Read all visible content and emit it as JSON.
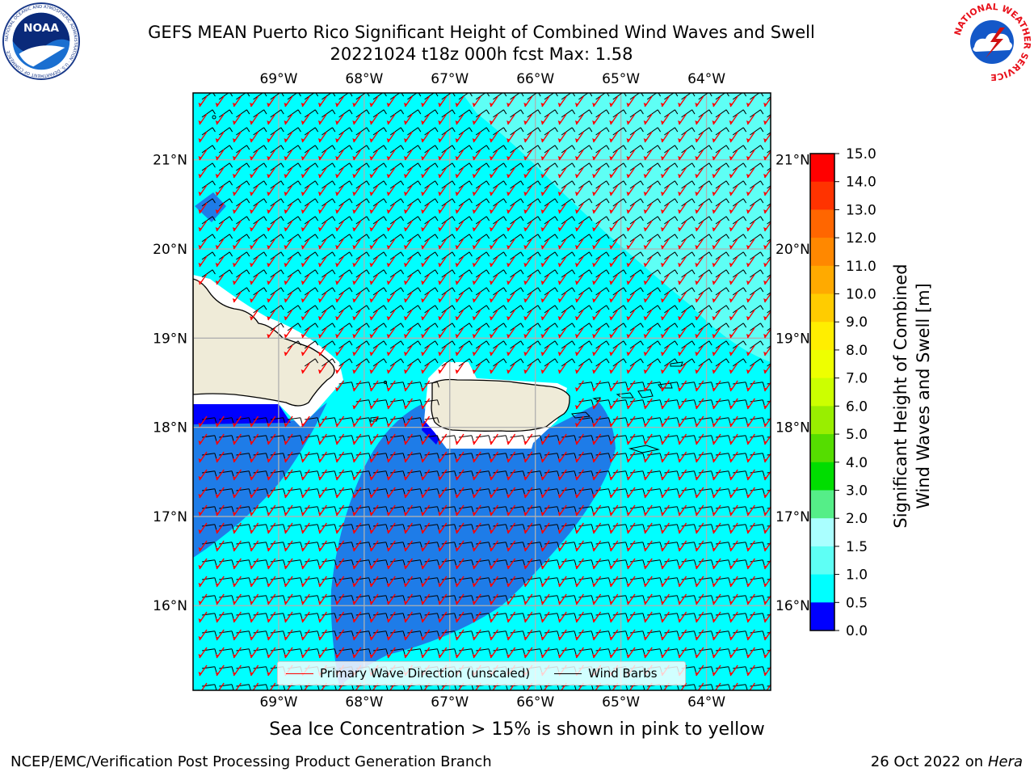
{
  "header": {
    "title_line1": "GEFS MEAN Puerto Rico Significant Height of Combined Wind Waves and Swell",
    "title_line2": "20221024 t18z 000h fcst   Max: 1.58"
  },
  "logos": {
    "left": {
      "icon": "noaa-logo-icon",
      "text": "NOAA",
      "ring_text": "NATIONAL OCEANIC AND ATMOSPHERIC ADMINISTRATION · U.S. DEPARTMENT OF COMMERCE"
    },
    "right": {
      "icon": "nws-logo-icon",
      "ring_text": "NATIONAL WEATHER SERVICE"
    }
  },
  "map": {
    "lon_ticks": [
      "69°W",
      "68°W",
      "67°W",
      "66°W",
      "65°W",
      "64°W"
    ],
    "lat_ticks": [
      "21°N",
      "20°N",
      "19°N",
      "18°N",
      "17°N",
      "16°N"
    ],
    "lon_values": [
      -69,
      -68,
      -67,
      -66,
      -65,
      -64
    ],
    "lat_values": [
      21,
      20,
      19,
      18,
      17,
      16
    ],
    "lon_range": [
      -70,
      -63.25
    ],
    "lat_range": [
      15.05,
      21.75
    ],
    "colors": {
      "ocean_1_0_to_1_5": "#00ffff",
      "ocean_1_5_to_2_0": "#5efff5",
      "shallow_0_5_to_1_0": "#1e7ce8",
      "shallow_0_0_to_0_5": "#0000ff",
      "land": "#efebd8",
      "wave_arrow": "#ff0000",
      "wind_barb": "#000000",
      "grid": "#b0b0b0"
    }
  },
  "legend": {
    "wave_label": "Primary Wave Direction (unscaled)",
    "barb_label": "Wind Barbs"
  },
  "colorbar": {
    "label_line1": "Significant Height of Combined",
    "label_line2": "Wind Waves and Swell [m]",
    "ticks": [
      "15.0",
      "14.0",
      "13.0",
      "12.0",
      "11.0",
      "10.0",
      "9.0",
      "8.0",
      "7.0",
      "6.0",
      "5.0",
      "4.0",
      "3.0",
      "2.0",
      "1.5",
      "1.0",
      "0.5",
      "0.0"
    ],
    "colors_top_to_bottom": [
      "#ff0000",
      "#ff3300",
      "#ff6600",
      "#ff8800",
      "#ffaa00",
      "#ffcc00",
      "#ffee00",
      "#eeff00",
      "#ccff00",
      "#99ee00",
      "#55dd00",
      "#00dd00",
      "#55ee88",
      "#aaffff",
      "#5efff5",
      "#00ffff",
      "#1e7ce8",
      "#0000ff"
    ]
  },
  "footer": {
    "sea_ice_note": "Sea Ice Concentration > 15% is shown in pink to yellow",
    "left": "NCEP/EMC/Verification Post Processing Product Generation Branch",
    "right_date": "26 Oct 2022 on",
    "right_host": "Hera"
  }
}
